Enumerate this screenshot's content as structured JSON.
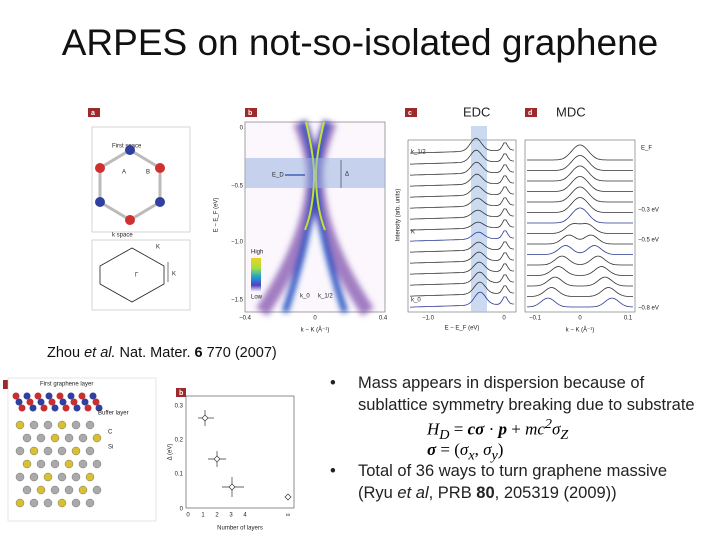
{
  "title": "ARPES on not-so-isolated graphene",
  "figure_top": {
    "panel_a": {
      "label": "a",
      "real_space": "First space",
      "site_a": "A",
      "site_b": "B",
      "k_space": "k space",
      "k_top": "K",
      "gamma": "Γ",
      "k_right": "K"
    },
    "panel_b": {
      "label": "b",
      "yticks": [
        "0",
        "−0.5",
        "−1.0",
        "−1.5"
      ],
      "ylabel": "E − E_F (eV)",
      "ed": "E_D",
      "delta": "Δ",
      "high": "High",
      "low": "Low",
      "k0": "k_0",
      "k12": "k_1/2",
      "xticks": [
        "−0.4",
        "0",
        "0.4"
      ],
      "xlabel": "k − K (Å⁻¹)"
    },
    "panel_c": {
      "label": "c",
      "heading": "EDC",
      "k12": "k_1/2",
      "k": "K",
      "k0": "k_0",
      "ylabel": "Intensity (arb. units)",
      "xticks": [
        "−1.0",
        "0"
      ],
      "xlabel": "E − E_F (eV)"
    },
    "panel_d": {
      "label": "d",
      "heading": "MDC",
      "ef": "E_F",
      "e1": "−0.3 eV",
      "e2": "−0.5 eV",
      "e3": "−0.8 eV",
      "xticks": [
        "−0.1",
        "0",
        "0.1"
      ],
      "xlabel": "k − K (Å⁻¹)"
    }
  },
  "citation": [
    "Zhou ",
    "et al.",
    " Nat. Mater. ",
    "6",
    " 770 (2007)"
  ],
  "figure_bottom": {
    "layer1": "First graphene layer",
    "layer2": "Buffer layer",
    "c": "C",
    "si": "Si",
    "label": "b",
    "ylabel": "Δ (eV)",
    "yticks": [
      "0",
      "0.1",
      "0.2",
      "0.3"
    ],
    "xticks": [
      "0",
      "1",
      "2",
      "3",
      "4",
      "∞"
    ],
    "xlabel": "Number of layers"
  },
  "bullets": [
    {
      "text": "Mass appears in dispersion because of sublattice symmetry breaking due to substrate",
      "eq1": [
        "H",
        "D",
        " = ",
        "cσ",
        " · ",
        "p",
        " + ",
        "mc",
        "2",
        "σ",
        "Z"
      ],
      "eq2": [
        "σ",
        " = (",
        "σ",
        "x",
        ", ",
        "σ",
        "y",
        ")"
      ]
    },
    {
      "text": [
        "Total of 36 ways to turn graphene massive (Ryu ",
        "et al",
        ", PRB ",
        "80",
        ", 205319 (2009))"
      ]
    }
  ]
}
